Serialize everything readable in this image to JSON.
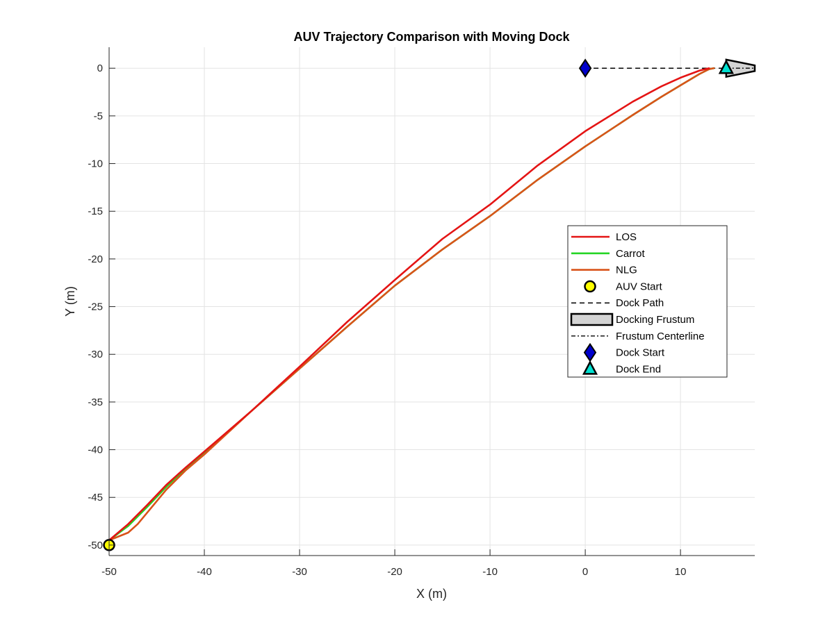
{
  "chart_data": {
    "type": "line",
    "title": "AUV Trajectory Comparison with Moving Dock",
    "xlabel": "X (m)",
    "ylabel": "Y (m)",
    "xlim": [
      -50,
      17.8
    ],
    "ylim": [
      -51.1,
      2.2
    ],
    "xticks": [
      -50,
      -40,
      -30,
      -20,
      -10,
      0,
      10
    ],
    "yticks": [
      0,
      -5,
      -10,
      -15,
      -20,
      -25,
      -30,
      -35,
      -40,
      -45,
      -50
    ],
    "grid": true,
    "legend_position": "right",
    "series": [
      {
        "name": "LOS",
        "color": "#e41414",
        "points": [
          [
            -50,
            -49.5
          ],
          [
            -48,
            -47.8
          ],
          [
            -46,
            -45.8
          ],
          [
            -44,
            -43.7
          ],
          [
            -42,
            -41.9
          ],
          [
            -40,
            -40.2
          ],
          [
            -35,
            -35.9
          ],
          [
            -30,
            -31.3
          ],
          [
            -25,
            -26.6
          ],
          [
            -20,
            -22.2
          ],
          [
            -15,
            -17.9
          ],
          [
            -10,
            -14.3
          ],
          [
            -5,
            -10.2
          ],
          [
            0,
            -6.6
          ],
          [
            5,
            -3.5
          ],
          [
            8,
            -1.9
          ],
          [
            10,
            -1.0
          ],
          [
            12,
            -0.25
          ],
          [
            13,
            0
          ]
        ]
      },
      {
        "name": "Carrot",
        "color": "#26d526",
        "points": [
          [
            -50,
            -49.5
          ],
          [
            -48,
            -48.0
          ],
          [
            -46,
            -46.0
          ],
          [
            -44,
            -43.9
          ],
          [
            -42,
            -42.0
          ],
          [
            -40,
            -40.3
          ],
          [
            -35,
            -35.9
          ],
          [
            -30,
            -31.5
          ],
          [
            -25,
            -27.1
          ],
          [
            -20,
            -22.8
          ],
          [
            -15,
            -19.0
          ],
          [
            -10,
            -15.5
          ],
          [
            -5,
            -11.7
          ],
          [
            0,
            -8.2
          ],
          [
            5,
            -4.9
          ],
          [
            8,
            -3.0
          ],
          [
            10,
            -1.8
          ],
          [
            12,
            -0.6
          ],
          [
            13,
            -0.1
          ],
          [
            13.5,
            0
          ]
        ]
      },
      {
        "name": "NLG",
        "color": "#d95319",
        "points": [
          [
            -50,
            -49.5
          ],
          [
            -48,
            -48.7
          ],
          [
            -47,
            -47.8
          ],
          [
            -46,
            -46.6
          ],
          [
            -45,
            -45.4
          ],
          [
            -44,
            -44.2
          ],
          [
            -42,
            -42.2
          ],
          [
            -40,
            -40.5
          ],
          [
            -35,
            -35.9
          ],
          [
            -30,
            -31.5
          ],
          [
            -25,
            -27.1
          ],
          [
            -20,
            -22.8
          ],
          [
            -15,
            -19.0
          ],
          [
            -10,
            -15.5
          ],
          [
            -5,
            -11.7
          ],
          [
            0,
            -8.2
          ],
          [
            5,
            -4.9
          ],
          [
            8,
            -3.0
          ],
          [
            10,
            -1.8
          ],
          [
            12,
            -0.6
          ],
          [
            13,
            -0.1
          ],
          [
            13.5,
            0
          ]
        ]
      }
    ],
    "markers": {
      "auv_start": {
        "name": "AUV Start",
        "x": -50,
        "y": -50,
        "color": "#ffff00"
      },
      "dock_start": {
        "name": "Dock Start",
        "x": 0,
        "y": 0,
        "color": "#0000cc"
      },
      "dock_end": {
        "name": "Dock End",
        "x": 14.8,
        "y": 0,
        "color": "#00e0d0"
      }
    },
    "dock_path": {
      "name": "Dock Path",
      "points": [
        [
          0,
          0
        ],
        [
          14.8,
          0
        ]
      ]
    },
    "frustum": {
      "name": "Docking Frustum",
      "fill": "#d4d4d4",
      "polygon": [
        [
          14.8,
          0.9
        ],
        [
          17.8,
          0.3
        ],
        [
          17.8,
          -0.3
        ],
        [
          14.8,
          -0.9
        ]
      ]
    },
    "frustum_centerline": {
      "name": "Frustum Centerline",
      "points": [
        [
          14.8,
          0
        ],
        [
          17.8,
          0
        ]
      ]
    },
    "legend": [
      "LOS",
      "Carrot",
      "NLG",
      "AUV Start",
      "Dock Path",
      "Docking Frustum",
      "Frustum Centerline",
      "Dock Start",
      "Dock End"
    ]
  }
}
